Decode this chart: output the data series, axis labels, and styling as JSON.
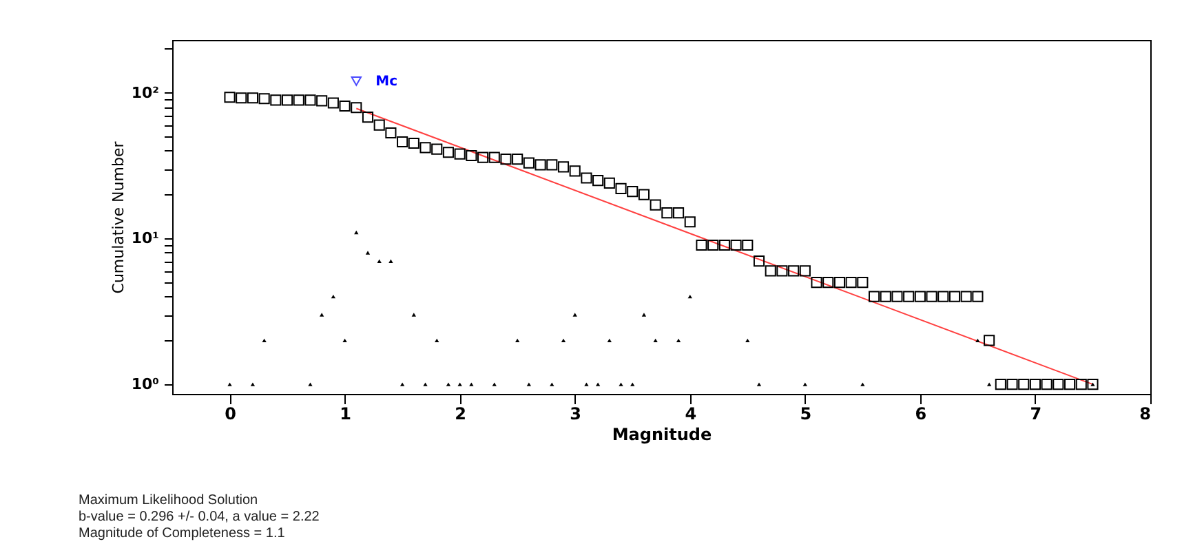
{
  "chart_data": {
    "type": "scatter",
    "xlabel": "Magnitude",
    "ylabel": "Cumulative Number",
    "log": "y",
    "xlim": [
      -0.5,
      8
    ],
    "xticks": [
      0,
      1,
      2,
      3,
      4,
      5,
      6,
      7,
      8
    ],
    "ylim": [
      0.86,
      230
    ],
    "yticks": [
      {
        "value": 1,
        "label": "10⁰"
      },
      {
        "value": 2,
        "label": null
      },
      {
        "value": 3,
        "label": null
      },
      {
        "value": 4,
        "label": null
      },
      {
        "value": 5,
        "label": null
      },
      {
        "value": 6,
        "label": null
      },
      {
        "value": 7,
        "label": null
      },
      {
        "value": 8,
        "label": null
      },
      {
        "value": 9,
        "label": null
      },
      {
        "value": 10,
        "label": "10¹"
      },
      {
        "value": 20,
        "label": null
      },
      {
        "value": 30,
        "label": null
      },
      {
        "value": 40,
        "label": null
      },
      {
        "value": 50,
        "label": null
      },
      {
        "value": 60,
        "label": null
      },
      {
        "value": 70,
        "label": null
      },
      {
        "value": 80,
        "label": null
      },
      {
        "value": 90,
        "label": null
      },
      {
        "value": 100,
        "label": "10²"
      },
      {
        "value": 200,
        "label": null
      }
    ],
    "series": [
      {
        "type": "scatter",
        "marker": "square",
        "color": "#000000",
        "x": [
          0,
          0.1,
          0.2,
          0.3,
          0.4,
          0.5,
          0.6,
          0.7,
          0.8,
          0.9,
          1.0,
          1.1,
          1.2,
          1.3,
          1.4,
          1.5,
          1.6,
          1.7,
          1.8,
          1.9,
          2.0,
          2.1,
          2.2,
          2.3,
          2.4,
          2.5,
          2.6,
          2.7,
          2.8,
          2.9,
          3.0,
          3.1,
          3.2,
          3.3,
          3.4,
          3.5,
          3.6,
          3.7,
          3.8,
          3.9,
          4.0,
          4.1,
          4.2,
          4.3,
          4.4,
          4.5,
          4.6,
          4.7,
          4.8,
          4.9,
          5.0,
          5.1,
          5.2,
          5.3,
          5.4,
          5.5,
          5.6,
          5.7,
          5.8,
          5.9,
          6.0,
          6.1,
          6.2,
          6.3,
          6.4,
          6.5,
          6.6,
          6.7,
          6.8,
          6.9,
          7.0,
          7.1,
          7.2,
          7.3,
          7.4,
          7.5
        ],
        "values": [
          93,
          92,
          92,
          91,
          89,
          89,
          89,
          89,
          88,
          85,
          81,
          79,
          68,
          60,
          53,
          46,
          45,
          42,
          41,
          39,
          38,
          37,
          36,
          36,
          35,
          35,
          33,
          32,
          32,
          31,
          29,
          26,
          25,
          24,
          22,
          21,
          20,
          17,
          15,
          15,
          13,
          9,
          9,
          9,
          9,
          9,
          7,
          6,
          6,
          6,
          6,
          5,
          5,
          5,
          5,
          5,
          4,
          4,
          4,
          4,
          4,
          4,
          4,
          4,
          4,
          4,
          2,
          1,
          1,
          1,
          1,
          1,
          1,
          1,
          1,
          1
        ]
      },
      {
        "type": "scatter",
        "marker": "triangle",
        "color": "#000000",
        "x": [
          0,
          0.2,
          0.3,
          0.7,
          0.8,
          0.9,
          1.0,
          1.1,
          1.2,
          1.3,
          1.4,
          1.5,
          1.6,
          1.7,
          1.8,
          1.9,
          2.0,
          2.1,
          2.3,
          2.5,
          2.6,
          2.8,
          2.9,
          3.0,
          3.1,
          3.2,
          3.3,
          3.4,
          3.5,
          3.6,
          3.7,
          3.9,
          4.0,
          4.5,
          4.6,
          5.0,
          5.5,
          6.5,
          6.6,
          7.5
        ],
        "values": [
          1,
          1,
          2,
          1,
          3,
          4,
          2,
          11,
          8,
          7,
          7,
          1,
          3,
          1,
          2,
          1,
          1,
          1,
          1,
          2,
          1,
          1,
          2,
          3,
          1,
          1,
          2,
          1,
          1,
          3,
          2,
          2,
          4,
          2,
          1,
          1,
          1,
          2,
          1,
          1
        ]
      },
      {
        "type": "line",
        "color": "#ff4040",
        "x": [
          1.1,
          7.5
        ],
        "values": [
          78,
          1
        ]
      }
    ],
    "annotations": [
      {
        "text": "Mc",
        "x": 1.1,
        "y": 120
      },
      "Maximum Likelihood Solution",
      "b-value = 0.296 +/- 0.04,  a value = 2.22",
      "Magnitude of Completeness = 1.1"
    ]
  }
}
